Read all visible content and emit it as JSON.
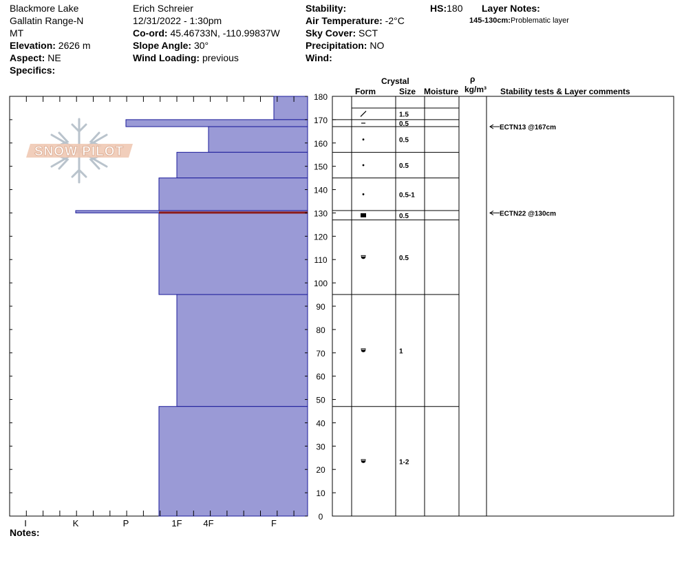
{
  "header": {
    "col1": {
      "location": "Blackmore Lake",
      "range": "Gallatin Range-N",
      "state": "MT",
      "elevation_label": "Elevation:",
      "elevation": "2626 m",
      "aspect_label": "Aspect:",
      "aspect": "NE",
      "specifics_label": "Specifics:"
    },
    "col2": {
      "observer": "Erich  Schreier",
      "datetime": "12/31/2022 - 1:30pm",
      "coord_label": "Co-ord:",
      "coord": "45.46733N, -110.99837W",
      "slope_label": "Slope Angle:",
      "slope": "30°",
      "wind_loading_label": "Wind Loading:",
      "wind_loading": "previous"
    },
    "col3": {
      "stability_label": "Stability:",
      "air_temp_label": "Air Temperature:",
      "air_temp": "-2°C",
      "sky_label": "Sky Cover:",
      "sky": "SCT",
      "precip_label": "Precipitation:",
      "precip": "NO",
      "wind_label": "Wind:"
    },
    "hs_label": "HS:",
    "hs": "180",
    "layer_notes_label": "Layer Notes:",
    "layer_note_range": "145-130cm:",
    "layer_note_text": "Problematic layer"
  },
  "columns": {
    "crystal": "Crystal",
    "form": "Form",
    "size": "Size",
    "moisture": "Moisture",
    "rho": "ρ",
    "density_unit": "kg/m³",
    "stability": "Stability tests & Layer comments"
  },
  "logo_text": "SNOW PILOT",
  "notes_label": "Notes:",
  "colors": {
    "layer_fill": "#9a9ad6",
    "layer_stroke": "#1a1a99",
    "weak_layer": "#8b1a1a"
  },
  "chart_data": {
    "type": "snow-profile",
    "y_axis": {
      "label": "",
      "min": 0,
      "max": 180,
      "ticks": [
        0,
        10,
        20,
        30,
        40,
        50,
        60,
        70,
        80,
        90,
        100,
        110,
        120,
        130,
        140,
        150,
        160,
        170,
        180
      ]
    },
    "hardness_scale": [
      "I",
      "K",
      "P",
      "1F",
      "4F",
      "F"
    ],
    "hardness_layers": [
      {
        "top": 180,
        "bottom": 170,
        "hardness": "F"
      },
      {
        "top": 170,
        "bottom": 167,
        "hardness": "P"
      },
      {
        "top": 167,
        "bottom": 156,
        "hardness": "4F"
      },
      {
        "top": 156,
        "bottom": 145,
        "hardness": "1F"
      },
      {
        "top": 145,
        "bottom": 131,
        "hardness": "1F-"
      },
      {
        "top": 131,
        "bottom": 130,
        "hardness": "K-"
      },
      {
        "top": 130,
        "bottom": 95,
        "hardness": "1F-"
      },
      {
        "top": 95,
        "bottom": 47,
        "hardness": "1F"
      },
      {
        "top": 47,
        "bottom": 0,
        "hardness": "1F-"
      }
    ],
    "weak_layer_depth": 130,
    "crystal_layers": [
      {
        "top": 180,
        "bottom": 170,
        "form": "precip-particle",
        "size": "1.5"
      },
      {
        "top": 170,
        "bottom": 167,
        "form": "surface-hoar",
        "size": "0.5"
      },
      {
        "top": 167,
        "bottom": 156,
        "form": "rounded-grain",
        "size": "0.5"
      },
      {
        "top": 156,
        "bottom": 145,
        "form": "rounded-grain",
        "size": "0.5"
      },
      {
        "top": 145,
        "bottom": 131,
        "form": "rounded-grain",
        "size": "0.5-1"
      },
      {
        "top": 131,
        "bottom": 127,
        "form": "faceted-square",
        "size": "0.5"
      },
      {
        "top": 127,
        "bottom": 95,
        "form": "depth-hoar-cup",
        "size": "0.5"
      },
      {
        "top": 95,
        "bottom": 47,
        "form": "depth-hoar-cup",
        "size": "1"
      },
      {
        "top": 47,
        "bottom": 0,
        "form": "depth-hoar-cup",
        "size": "1-2"
      }
    ],
    "stability_tests": [
      {
        "depth": 167,
        "text": "ECTN13 @167cm"
      },
      {
        "depth": 130,
        "text": "ECTN22 @130cm"
      }
    ]
  }
}
